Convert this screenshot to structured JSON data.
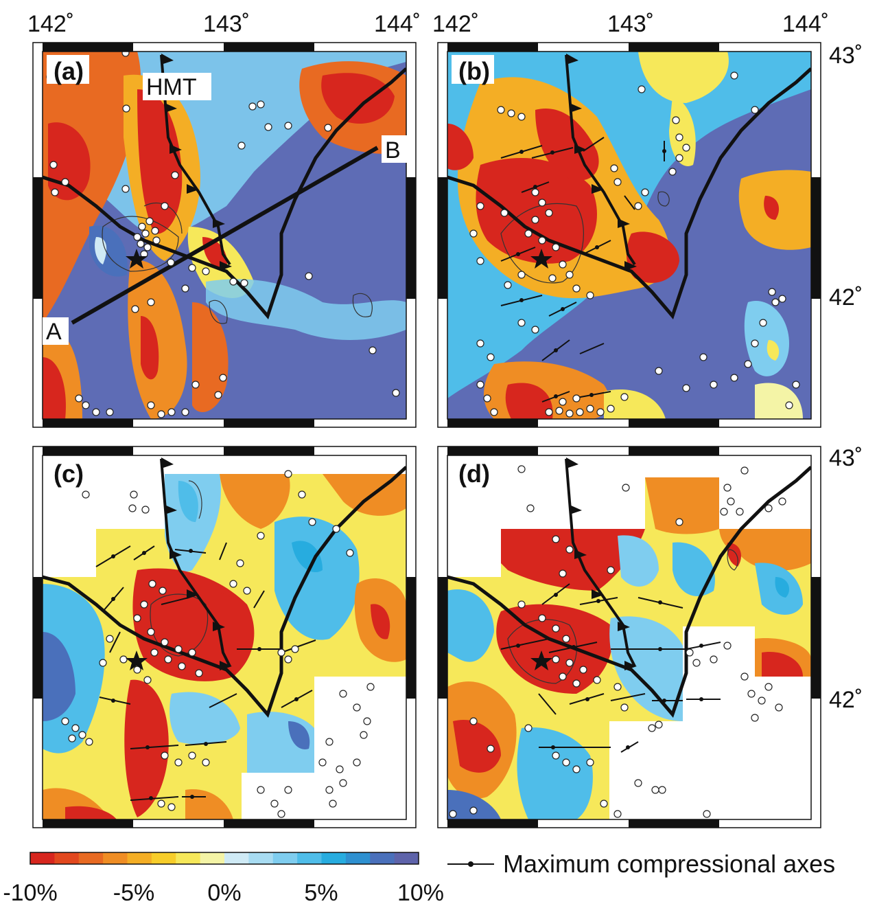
{
  "axes": {
    "lon_top_left": [
      "142˚",
      "143˚",
      "144˚"
    ],
    "lon_top_right": [
      "142˚",
      "143˚",
      "144˚"
    ],
    "lat_right": [
      "43˚",
      "42˚"
    ]
  },
  "panels": [
    {
      "id": "a",
      "label": "(a)",
      "annotations": {
        "fault": "HMT",
        "profile_start": "A",
        "profile_end": "B"
      }
    },
    {
      "id": "b",
      "label": "(b)"
    },
    {
      "id": "c",
      "label": "(c)"
    },
    {
      "id": "d",
      "label": "(d)"
    }
  ],
  "colorbar": {
    "tick_labels": [
      "-10%",
      "-5%",
      "0%",
      "5%",
      "10%"
    ],
    "values": [
      -10,
      -5,
      0,
      5,
      10
    ],
    "colors": [
      "#d7261e",
      "#e2481e",
      "#e86a22",
      "#ef8d24",
      "#f4ae25",
      "#f7cd2a",
      "#f6e85a",
      "#f4f4a6",
      "#cfeaf5",
      "#a8dcf2",
      "#7fcdef",
      "#4fbde9",
      "#27acdf",
      "#2e90d0",
      "#4a70bb",
      "#5e63aa"
    ]
  },
  "legend": {
    "label": "Maximum compressional axes"
  }
}
